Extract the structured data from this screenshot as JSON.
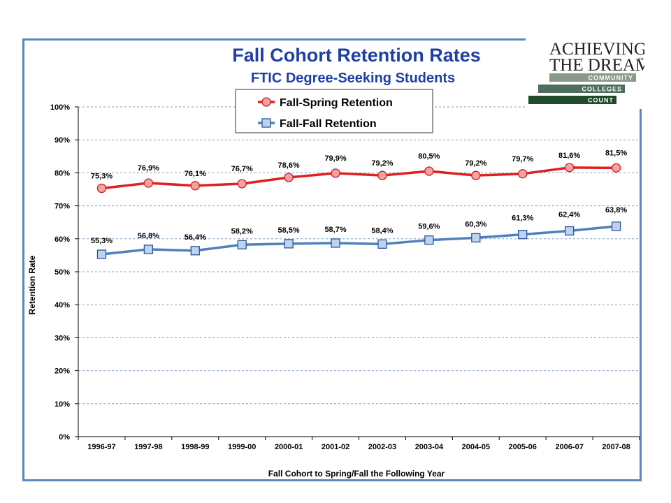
{
  "chart_data": {
    "type": "line",
    "title": "Fall Cohort Retention Rates",
    "subtitle": "FTIC Degree-Seeking Students",
    "xlabel": "Fall Cohort to Spring/Fall the Following Year",
    "ylabel": "Retention Rate",
    "categories": [
      "1996-97",
      "1997-98",
      "1998-99",
      "1999-00",
      "2000-01",
      "2001-02",
      "2002-03",
      "2003-04",
      "2004-05",
      "2005-06",
      "2006-07",
      "2007-08"
    ],
    "ylim": [
      0,
      100
    ],
    "yticks": [
      "0%",
      "10%",
      "20%",
      "30%",
      "40%",
      "50%",
      "60%",
      "70%",
      "80%",
      "90%",
      "100%"
    ],
    "grid": true,
    "legend_position": "top",
    "series": [
      {
        "name": "Fall-Spring Retention",
        "color": "#e02020",
        "marker": "circle",
        "values": [
          75.3,
          76.9,
          76.1,
          76.7,
          78.6,
          79.9,
          79.2,
          80.5,
          79.2,
          79.7,
          81.6,
          81.5
        ],
        "labels": [
          "75,3%",
          "76,9%",
          "76,1%",
          "76,7%",
          "78,6%",
          "79,9%",
          "79,2%",
          "80,5%",
          "79,2%",
          "79,7%",
          "81,6%",
          "81,5%"
        ]
      },
      {
        "name": "Fall-Fall Retention",
        "color": "#4f81bd",
        "marker": "square",
        "values": [
          55.3,
          56.8,
          56.4,
          58.2,
          58.5,
          58.7,
          58.4,
          59.6,
          60.3,
          61.3,
          62.4,
          63.8
        ],
        "labels": [
          "55,3%",
          "56,8%",
          "56,4%",
          "58,2%",
          "58,5%",
          "58,7%",
          "58,4%",
          "59,6%",
          "60,3%",
          "61,3%",
          "62,4%",
          "63,8%"
        ]
      }
    ]
  },
  "logo": {
    "line1": "ACHIEVING",
    "line2": "THE DREAM",
    "tm": "™",
    "bars": [
      "COMMUNITY",
      "COLLEGES",
      "COUNT"
    ]
  }
}
